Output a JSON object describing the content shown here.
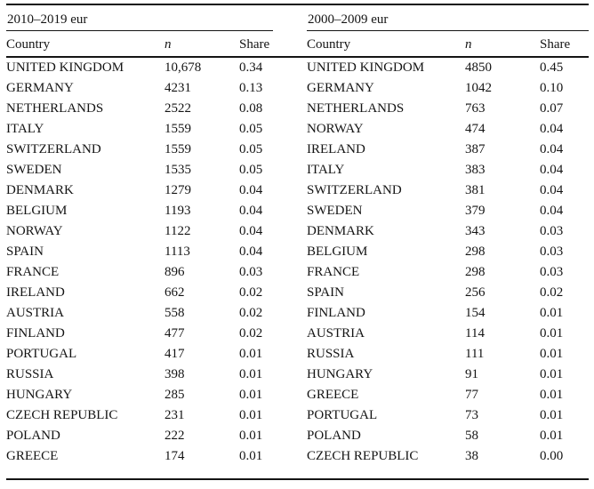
{
  "colors": {
    "text": "#141414",
    "rule": "#141414",
    "background": "#ffffff"
  },
  "tables": [
    {
      "period": "2010–2019 eur",
      "columns": {
        "country": "Country",
        "n": "n",
        "share": "Share"
      },
      "rows": [
        {
          "country": "UNITED KINGDOM",
          "n": "10,678",
          "share": "0.34"
        },
        {
          "country": "GERMANY",
          "n": "4231",
          "share": "0.13"
        },
        {
          "country": "NETHERLANDS",
          "n": "2522",
          "share": "0.08"
        },
        {
          "country": "ITALY",
          "n": "1559",
          "share": "0.05"
        },
        {
          "country": "SWITZERLAND",
          "n": "1559",
          "share": "0.05"
        },
        {
          "country": "SWEDEN",
          "n": "1535",
          "share": "0.05"
        },
        {
          "country": "DENMARK",
          "n": "1279",
          "share": "0.04"
        },
        {
          "country": "BELGIUM",
          "n": "1193",
          "share": "0.04"
        },
        {
          "country": "NORWAY",
          "n": "1122",
          "share": "0.04"
        },
        {
          "country": "SPAIN",
          "n": "1113",
          "share": "0.04"
        },
        {
          "country": "FRANCE",
          "n": "896",
          "share": "0.03"
        },
        {
          "country": "IRELAND",
          "n": "662",
          "share": "0.02"
        },
        {
          "country": "AUSTRIA",
          "n": "558",
          "share": "0.02"
        },
        {
          "country": "FINLAND",
          "n": "477",
          "share": "0.02"
        },
        {
          "country": "PORTUGAL",
          "n": "417",
          "share": "0.01"
        },
        {
          "country": "RUSSIA",
          "n": "398",
          "share": "0.01"
        },
        {
          "country": "HUNGARY",
          "n": "285",
          "share": "0.01"
        },
        {
          "country": "CZECH REPUBLIC",
          "n": "231",
          "share": "0.01"
        },
        {
          "country": "POLAND",
          "n": "222",
          "share": "0.01"
        },
        {
          "country": "GREECE",
          "n": "174",
          "share": "0.01"
        }
      ]
    },
    {
      "period": "2000–2009 eur",
      "columns": {
        "country": "Country",
        "n": "n",
        "share": "Share"
      },
      "rows": [
        {
          "country": "UNITED KINGDOM",
          "n": "4850",
          "share": "0.45"
        },
        {
          "country": "GERMANY",
          "n": "1042",
          "share": "0.10"
        },
        {
          "country": "NETHERLANDS",
          "n": "763",
          "share": "0.07"
        },
        {
          "country": "NORWAY",
          "n": "474",
          "share": "0.04"
        },
        {
          "country": "IRELAND",
          "n": "387",
          "share": "0.04"
        },
        {
          "country": "ITALY",
          "n": "383",
          "share": "0.04"
        },
        {
          "country": "SWITZERLAND",
          "n": "381",
          "share": "0.04"
        },
        {
          "country": "SWEDEN",
          "n": "379",
          "share": "0.04"
        },
        {
          "country": "DENMARK",
          "n": "343",
          "share": "0.03"
        },
        {
          "country": "BELGIUM",
          "n": "298",
          "share": "0.03"
        },
        {
          "country": "FRANCE",
          "n": "298",
          "share": "0.03"
        },
        {
          "country": "SPAIN",
          "n": "256",
          "share": "0.02"
        },
        {
          "country": "FINLAND",
          "n": "154",
          "share": "0.01"
        },
        {
          "country": "AUSTRIA",
          "n": "114",
          "share": "0.01"
        },
        {
          "country": "RUSSIA",
          "n": "111",
          "share": "0.01"
        },
        {
          "country": "HUNGARY",
          "n": "91",
          "share": "0.01"
        },
        {
          "country": "GREECE",
          "n": "77",
          "share": "0.01"
        },
        {
          "country": "PORTUGAL",
          "n": "73",
          "share": "0.01"
        },
        {
          "country": "POLAND",
          "n": "58",
          "share": "0.01"
        },
        {
          "country": "CZECH REPUBLIC",
          "n": "38",
          "share": "0.00"
        }
      ]
    }
  ]
}
